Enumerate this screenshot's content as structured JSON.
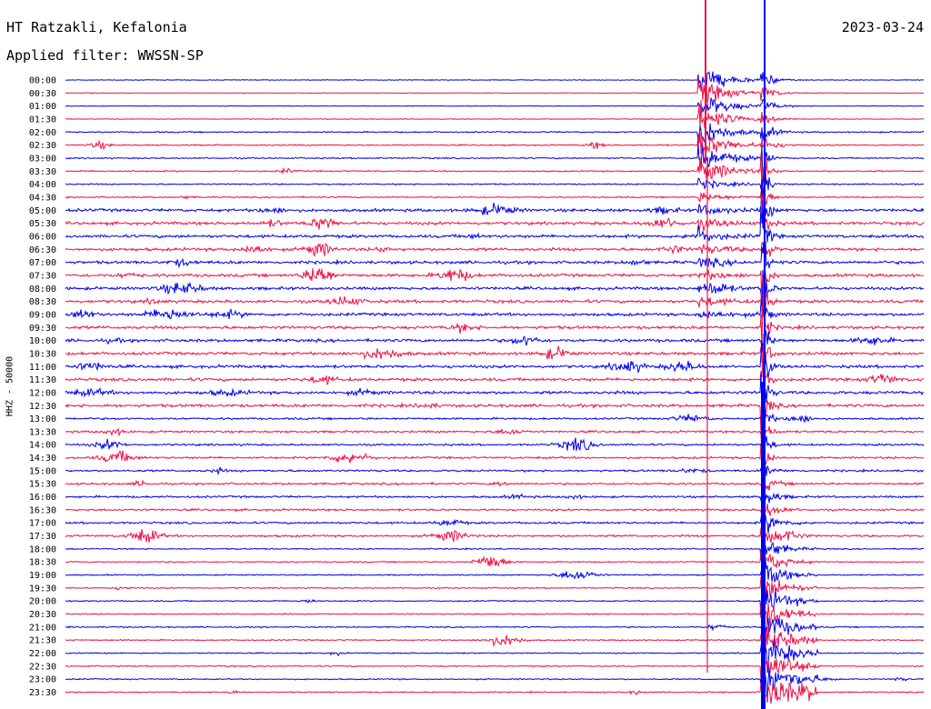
{
  "header": {
    "station": "HT Ratzakli, Kefalonia",
    "filter": "Applied filter: WWSSN-SP",
    "date": "2023-03-24"
  },
  "chart_data": {
    "type": "line",
    "title": "HT Ratzakli, Kefalonia",
    "subtitle": "Applied filter: WWSSN-SP",
    "date": "2023-03-24",
    "ylabel": "HHZ - 50000",
    "xlabel": "",
    "row_labels": [
      "00:00",
      "00:30",
      "01:00",
      "01:30",
      "02:00",
      "02:30",
      "03:00",
      "03:30",
      "04:00",
      "04:30",
      "05:00",
      "05:30",
      "06:00",
      "06:30",
      "07:00",
      "07:30",
      "08:00",
      "08:30",
      "09:00",
      "09:30",
      "10:00",
      "10:30",
      "11:00",
      "11:30",
      "12:00",
      "12:30",
      "13:00",
      "13:30",
      "14:00",
      "14:30",
      "15:00",
      "15:30",
      "16:00",
      "16:30",
      "17:00",
      "17:30",
      "18:00",
      "18:30",
      "19:00",
      "19:30",
      "20:00",
      "20:30",
      "21:00",
      "21:30",
      "22:00",
      "22:30",
      "23:00",
      "23:30"
    ],
    "row_minutes": 30,
    "series_colors": [
      "#0000ee",
      "#ee1144"
    ],
    "grid": false,
    "legend": "none"
  }
}
